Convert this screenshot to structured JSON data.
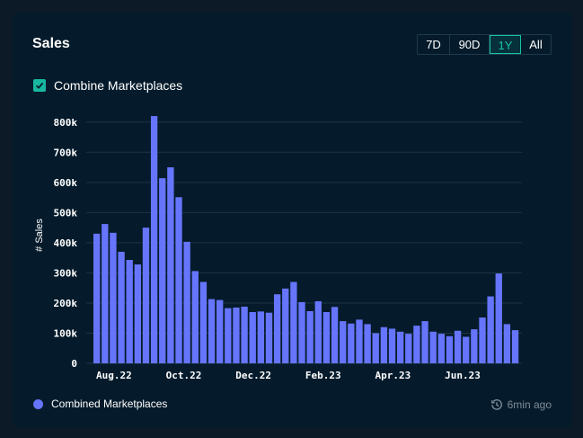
{
  "card": {
    "title": "Sales",
    "ranges": [
      "7D",
      "90D",
      "1Y",
      "All"
    ],
    "active_range": "1Y",
    "combine_label": "Combine Marketplaces",
    "combine_checked": true,
    "legend_label": "Combined Marketplaces",
    "updated_text": "6min ago"
  },
  "colors": {
    "bar": "#6675fb",
    "accent": "#17c3a8",
    "grid": "#1b3444",
    "axis_text": "#ffffff"
  },
  "chart_data": {
    "type": "bar",
    "ylabel": "# Sales",
    "ylim": [
      0,
      850000
    ],
    "yticks": [
      0,
      100000,
      200000,
      300000,
      400000,
      500000,
      600000,
      700000,
      800000
    ],
    "ytick_labels": [
      "0",
      "100k",
      "200k",
      "300k",
      "400k",
      "500k",
      "600k",
      "700k",
      "800k"
    ],
    "xtick_labels": [
      {
        "label": "Aug.22",
        "index": 2
      },
      {
        "label": "Oct.22",
        "index": 10.5
      },
      {
        "label": "Dec.22",
        "index": 19
      },
      {
        "label": "Feb.23",
        "index": 27.5
      },
      {
        "label": "Apr.23",
        "index": 36
      },
      {
        "label": "Jun.23",
        "index": 44.5
      }
    ],
    "series": [
      {
        "name": "Combined Marketplaces",
        "values": [
          430000,
          462000,
          433000,
          370000,
          343000,
          328000,
          450000,
          820000,
          614000,
          650000,
          551000,
          403000,
          306000,
          270000,
          213000,
          210000,
          183000,
          185000,
          188000,
          170000,
          172000,
          168000,
          229000,
          248000,
          270000,
          203000,
          173000,
          206000,
          170000,
          187000,
          140000,
          132000,
          145000,
          130000,
          100000,
          120000,
          115000,
          105000,
          98000,
          125000,
          140000,
          105000,
          98000,
          90000,
          108000,
          88000,
          113000,
          152000,
          222000,
          298000,
          130000,
          110000
        ]
      }
    ]
  }
}
